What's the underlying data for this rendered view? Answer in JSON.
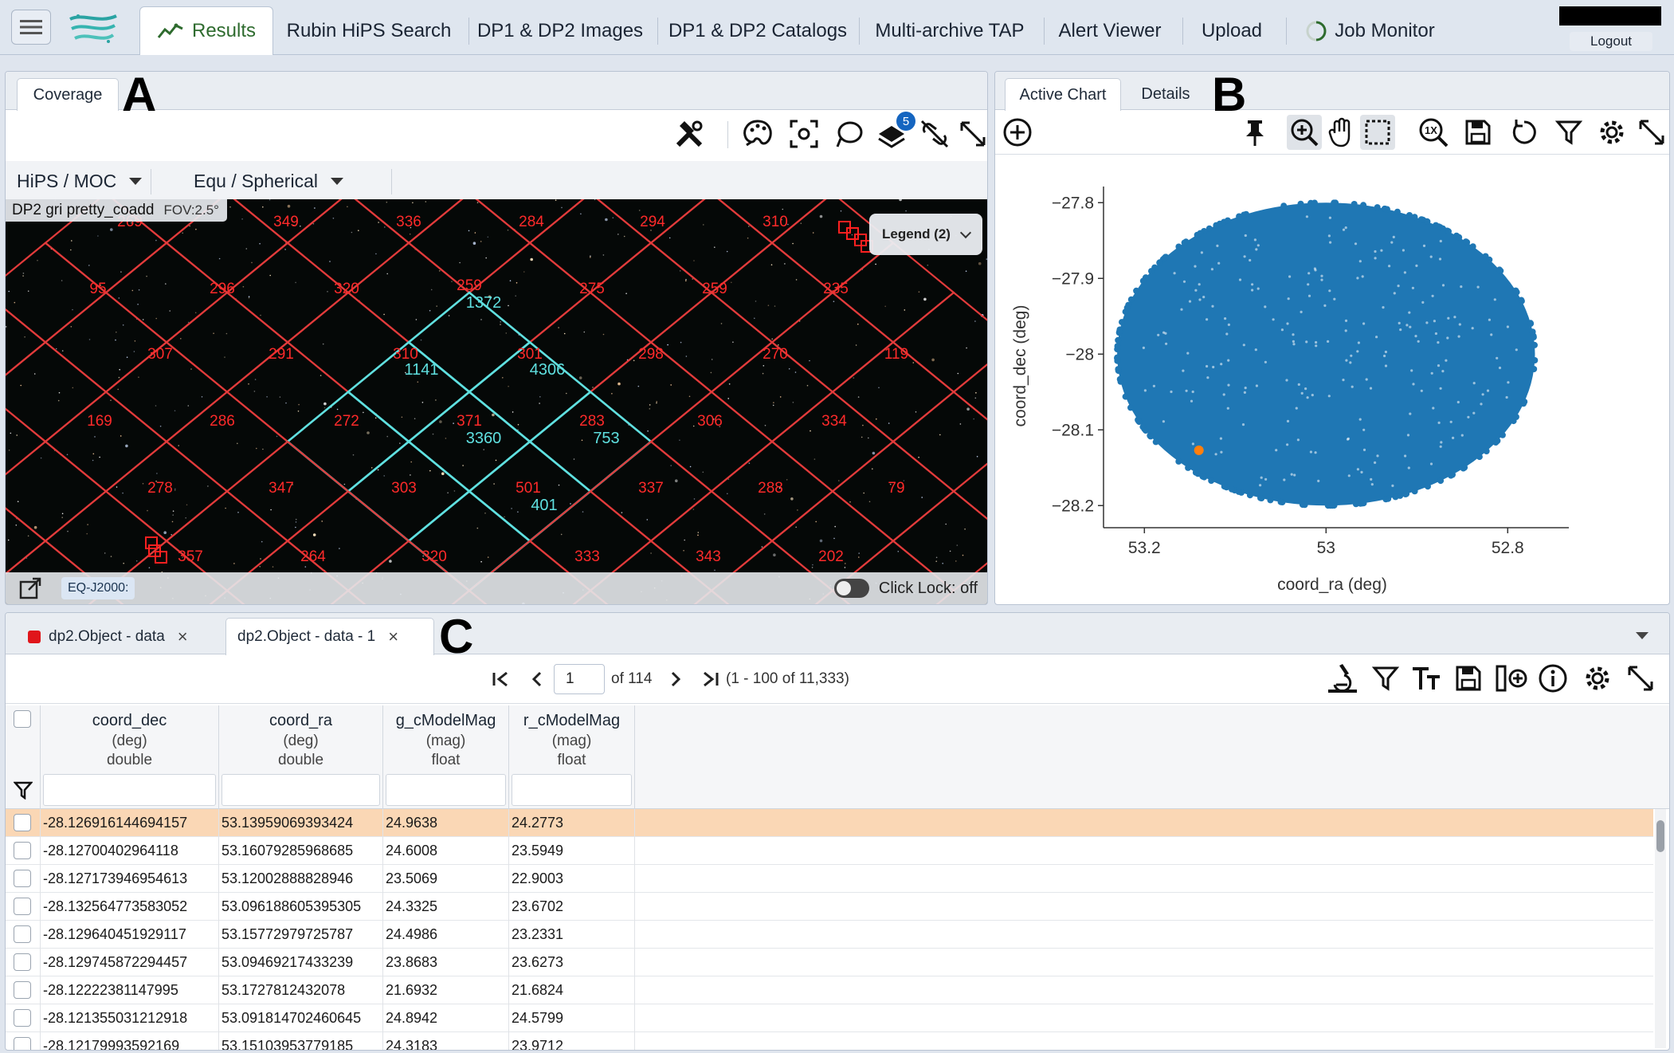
{
  "nav": {
    "tabs": [
      {
        "label": "Results"
      },
      {
        "label": "Rubin HiPS Search"
      },
      {
        "label": "DP1 & DP2 Images"
      },
      {
        "label": "DP1 & DP2 Catalogs"
      },
      {
        "label": "Multi-archive TAP"
      },
      {
        "label": "Alert Viewer"
      },
      {
        "label": "Upload"
      },
      {
        "label": "Job Monitor"
      }
    ],
    "logout_label": "Logout",
    "accent_color": "#2e6b2e"
  },
  "coverage": {
    "panel_letter": "A",
    "tab_label": "Coverage",
    "layer_badge": "5",
    "hips_moc_label": "HiPS / MOC",
    "coordsys_label": "Equ / Spherical",
    "image_name": "DP2 gri pretty_coadd",
    "fov": "FOV:2.5°",
    "legend_label": "Legend (2)",
    "eq_label": "EQ-J2000:",
    "click_lock_label": "Click Lock: off",
    "red_counts": [
      "269",
      "349",
      "336",
      "284",
      "294",
      "310",
      "95",
      "296",
      "320",
      "259",
      "275",
      "259",
      "235",
      "307",
      "291",
      "310",
      "301",
      "298",
      "270",
      "119",
      "169",
      "286",
      "272",
      "371",
      "283",
      "306",
      "334",
      "278",
      "347",
      "303",
      "501",
      "337",
      "288",
      "79",
      "357",
      "264",
      "320",
      "333",
      "343",
      "202"
    ],
    "cyan_counts": [
      "1372",
      "1141",
      "4306",
      "3360",
      "753",
      "401"
    ]
  },
  "chart": {
    "panel_letter": "B",
    "tabs": [
      {
        "label": "Active Chart"
      },
      {
        "label": "Details"
      }
    ]
  },
  "chart_data": {
    "type": "scatter",
    "xlabel": "coord_ra (deg)",
    "ylabel": "coord_dec (deg)",
    "xlim": [
      53.245,
      52.745
    ],
    "ylim": [
      -28.225,
      -27.785
    ],
    "x_ticks": [
      53.2,
      53,
      52.8
    ],
    "x_tick_labels": [
      "53.2",
      "53",
      "52.8"
    ],
    "y_ticks": [
      -27.8,
      -27.9,
      -28,
      -28.1,
      -28.2
    ],
    "y_tick_labels": [
      "−27.8",
      "−27.9",
      "−28",
      "−28.1",
      "−28.2"
    ],
    "series": [
      {
        "color": "#1f77b4",
        "shape": "filled-ellipse",
        "center_x": 53.0,
        "center_y": -28.0,
        "semi_axis_x": 0.23,
        "semi_axis_y": 0.2,
        "n_points": 11333
      },
      {
        "color": "#ff7f0e",
        "x": [
          53.14
        ],
        "y": [
          -28.127
        ]
      }
    ]
  },
  "table": {
    "panel_letter": "C",
    "tabs": [
      {
        "label": "dp2.Object - data"
      },
      {
        "label": "dp2.Object - data - 1"
      }
    ],
    "page_current": "1",
    "page_of": "of 114",
    "range_text": "(1 - 100 of 11,333)",
    "columns": [
      {
        "name": "coord_dec",
        "unit": "(deg)",
        "type": "double"
      },
      {
        "name": "coord_ra",
        "unit": "(deg)",
        "type": "double"
      },
      {
        "name": "g_cModelMag",
        "unit": "(mag)",
        "type": "float"
      },
      {
        "name": "r_cModelMag",
        "unit": "(mag)",
        "type": "float"
      }
    ],
    "rows": [
      [
        "-28.126916144694157",
        "53.13959069393424",
        "24.9638",
        "24.2773"
      ],
      [
        "-28.12700402964118",
        "53.16079285968685",
        "24.6008",
        "23.5949"
      ],
      [
        "-28.127173946954613",
        "53.12002888828946",
        "23.5069",
        "22.9003"
      ],
      [
        "-28.132564773583052",
        "53.096188605395305",
        "24.3325",
        "23.6702"
      ],
      [
        "-28.129640451929117",
        "53.15772979725787",
        "24.4986",
        "23.2331"
      ],
      [
        "-28.129745872294457",
        "53.09469217433239",
        "23.8683",
        "23.6273"
      ],
      [
        "-28.12222381147995",
        "53.1727812432078",
        "21.6932",
        "21.6824"
      ],
      [
        "-28.121355031212918",
        "53.091814702460645",
        "24.8942",
        "24.5799"
      ],
      [
        "-28.12179993592169",
        "53.15103953779185",
        "24.3183",
        "23.9712"
      ]
    ],
    "selected_row_color": "#fad7b5"
  }
}
